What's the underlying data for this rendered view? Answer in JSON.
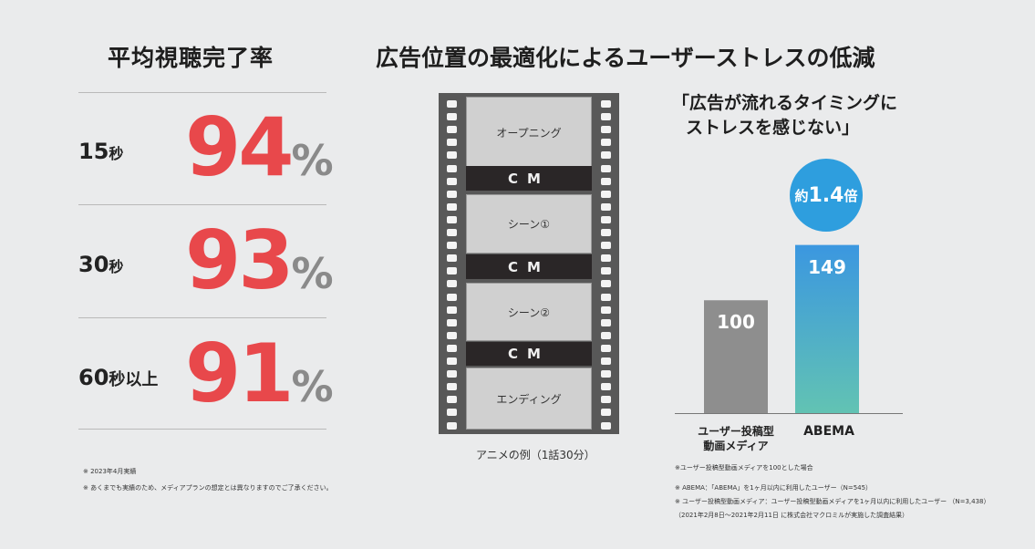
{
  "left": {
    "title": "平均視聴完了率",
    "rows": [
      {
        "label_num": "15",
        "label_unit": "秒",
        "label_suffix": "",
        "value": "94",
        "unit": "%"
      },
      {
        "label_num": "30",
        "label_unit": "秒",
        "label_suffix": "",
        "value": "93",
        "unit": "%"
      },
      {
        "label_num": "60",
        "label_unit": "秒以上",
        "label_suffix": "",
        "value": "91",
        "unit": "%"
      }
    ],
    "notes": [
      "※ 2023年4月実績",
      "※ あくまでも実績のため、メディアプランの想定とは異なりますのでご了承ください。"
    ]
  },
  "right_title": "広告位置の最適化によるユーザーストレスの低減",
  "film": {
    "frames": [
      "オープニング",
      "CM",
      "シーン①",
      "CM",
      "シーン②",
      "CM",
      "エンディング"
    ],
    "caption": "アニメの例（1話30分）"
  },
  "chart_quote": [
    "「広告が流れるタイミングに",
    "ストレスを感じない」"
  ],
  "badge": {
    "pre": "約",
    "mid": "1.4",
    "post": "倍"
  },
  "chart_data": {
    "type": "bar",
    "title": "「広告が流れるタイミングにストレスを感じない」",
    "categories": [
      "ユーザー投稿型動画メディア",
      "ABEMA"
    ],
    "category_lines": [
      [
        "ユーザー投稿型",
        "動画メディア"
      ],
      [
        "ABEMA"
      ]
    ],
    "values": [
      100,
      149
    ],
    "value_labels": [
      "100",
      "149"
    ],
    "ylim": [
      0,
      160
    ],
    "annotation": "約1.4倍",
    "colors": {
      "bar1": "#8e8e8e",
      "bar2_top": "#3b97e0",
      "bar2_bottom": "#62c3b3"
    },
    "grid": false
  },
  "chart_notes": [
    "※ユーザー投稿型動画メディアを100とした場合",
    "※ ABEMA：「ABEMA」を1ヶ月以内に利用したユーザー（N=545）",
    "※ ユーザー投稿型動画メディア：ユーザー投稿型動画メディアを1ヶ月以内に利用したユーザー （N=3,438）",
    "（2021年2月8日～2021年2月11日 に株式会社マクロミルが実施した調査結果）"
  ],
  "colors": {
    "accent_red": "#e8484b",
    "bg": "#eaebec"
  }
}
